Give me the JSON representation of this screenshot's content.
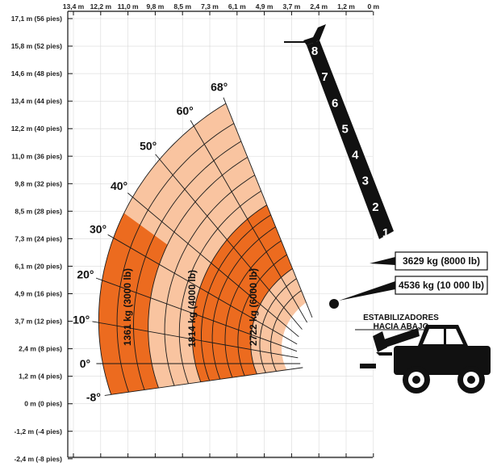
{
  "chart_data": {
    "type": "load-chart",
    "x_ticks": [
      "13,4 m",
      "12,2 m",
      "11,0 m",
      "9,8 m",
      "8,5 m",
      "7,3 m",
      "6,1 m",
      "4,9 m",
      "3,7 m",
      "2,4 m",
      "1,2 m",
      "0 m"
    ],
    "y_ticks": [
      "17,1 m (56 pies)",
      "15,8 m (52 pies)",
      "14,6 m (48 pies)",
      "13,4 m (44 pies)",
      "12,2 m (40 pies)",
      "11,0 m (36 pies)",
      "9,8 m (32 pies)",
      "8,5 m (28 pies)",
      "7,3 m (24 pies)",
      "6,1 m (20 pies)",
      "4,9 m (16 pies)",
      "3,7 m (12 pies)",
      "2,4 m (8 pies)",
      "1,2 m (4 pies)",
      "0 m (0 pies)",
      "-1,2 m (-4 pies)",
      "-2,4 m (-8 pies)"
    ],
    "angles": [
      "-8°",
      "0°",
      "10°",
      "20°",
      "30°",
      "40°",
      "50°",
      "60°",
      "68°"
    ],
    "boom_sections": [
      "1",
      "2",
      "3",
      "4",
      "5",
      "6",
      "7",
      "8"
    ],
    "zones": [
      {
        "label": "1361 kg (3000 lb)",
        "color": "#ec6b1f"
      },
      {
        "label": "1814 kg (4000 lb)",
        "color": "#f9c4a0"
      },
      {
        "label": "2722 kg (6000 lb)",
        "color": "#ec6b1f"
      }
    ],
    "capacity_callouts": [
      "3629 kg (8000 lb)",
      "4536 kg (10 000 lb)"
    ],
    "stabilizer_label": [
      "ESTABILIZADORES",
      "HACIA ABAJO"
    ]
  },
  "colors": {
    "dark_orange": "#ec6b1f",
    "light_orange": "#f9c4a0",
    "boom": "#111111"
  },
  "icons": [
    "telehandler-icon"
  ]
}
